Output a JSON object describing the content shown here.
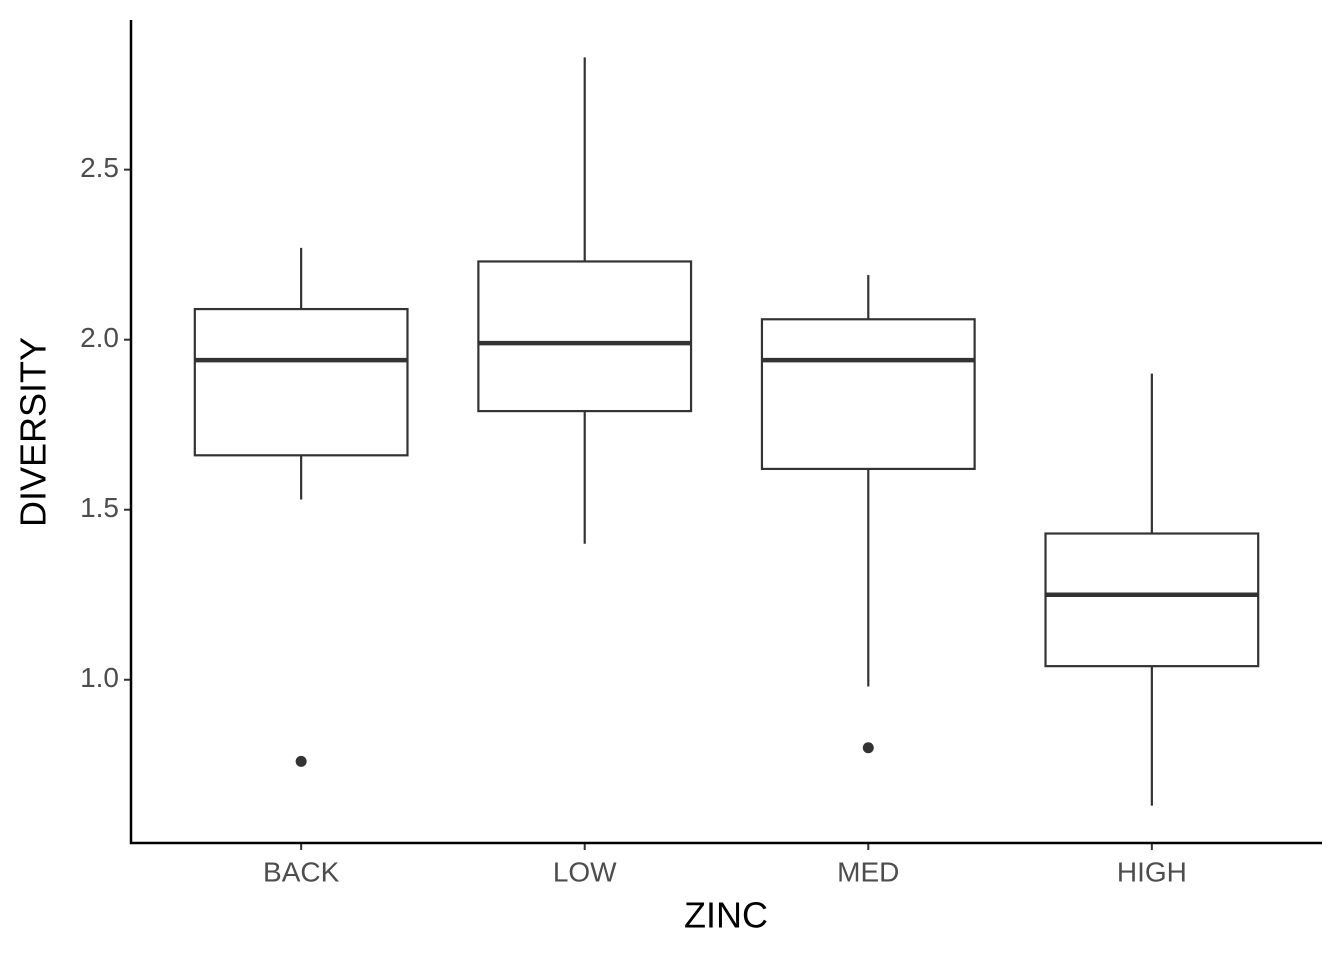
{
  "chart_data": {
    "type": "box",
    "x_label": "ZINC",
    "y_label": "DIVERSITY",
    "categories": [
      "BACK",
      "LOW",
      "MED",
      "HIGH"
    ],
    "boxes": [
      {
        "whisker_low": 1.53,
        "q1": 1.66,
        "median": 1.94,
        "q3": 2.09,
        "whisker_high": 2.27,
        "outliers": [
          0.76
        ]
      },
      {
        "whisker_low": 1.4,
        "q1": 1.79,
        "median": 1.99,
        "q3": 2.23,
        "whisker_high": 2.83,
        "outliers": []
      },
      {
        "whisker_low": 0.98,
        "q1": 1.62,
        "median": 1.94,
        "q3": 2.06,
        "whisker_high": 2.19,
        "outliers": [
          0.8
        ]
      },
      {
        "whisker_low": 0.63,
        "q1": 1.04,
        "median": 1.25,
        "q3": 1.43,
        "whisker_high": 1.9,
        "outliers": []
      }
    ],
    "color": "#333333",
    "ylim": [
      0.52,
      2.94
    ],
    "yticks": [
      {
        "value": 1.0,
        "label": "1.0"
      },
      1.5,
      {
        "value": 2.0,
        "label": "2.0"
      },
      2.5
    ],
    "grid": false
  }
}
